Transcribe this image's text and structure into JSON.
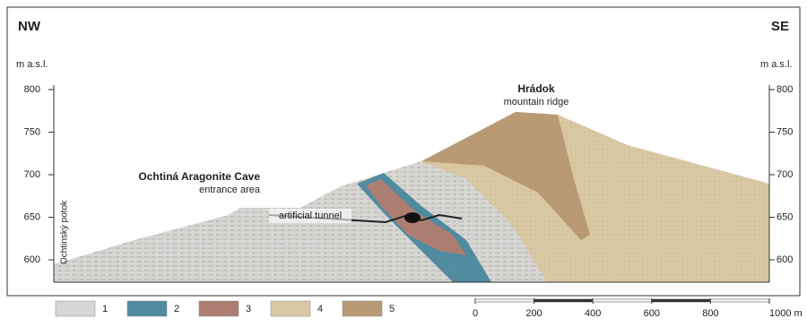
{
  "header": {
    "left": "NW",
    "right": "SE"
  },
  "axes": {
    "left": {
      "unit": "m a.s.l.",
      "ticks": [
        800,
        750,
        700,
        650,
        600
      ]
    },
    "right": {
      "unit": "m a.s.l.",
      "ticks": [
        800,
        750,
        700,
        650,
        600
      ]
    }
  },
  "labels": {
    "ridge_name": "Hrádok",
    "ridge_desc": "mountain ridge",
    "cave_name": "Ochtiná Aragonite Cave",
    "cave_desc": "entrance area",
    "tunnel": "artificial tunnel",
    "stream": "Ochtinský potok"
  },
  "legend": [
    {
      "label": "1",
      "color": "#d6d6d4"
    },
    {
      "label": "2",
      "color": "#4f8ba1"
    },
    {
      "label": "3",
      "color": "#ad7d72"
    },
    {
      "label": "4",
      "color": "#d9c8a4"
    },
    {
      "label": "5",
      "color": "#b99a74"
    }
  ],
  "scale": {
    "ticks": [
      0,
      200,
      400,
      600,
      800,
      {
        "value": 1000,
        "label": "1000 m"
      }
    ]
  }
}
